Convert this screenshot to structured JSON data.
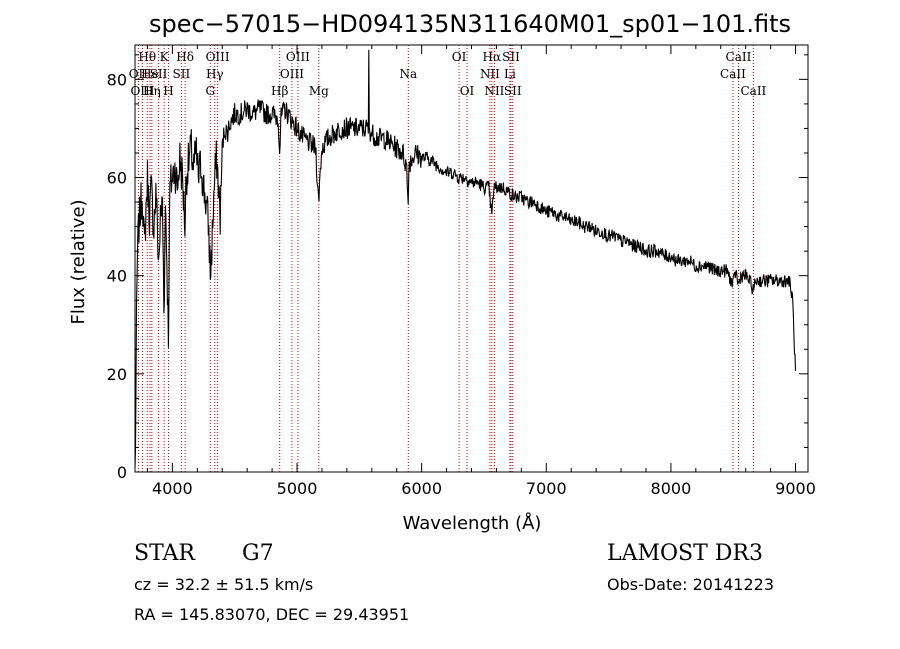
{
  "chart_data": {
    "type": "line",
    "title": "spec−57015−HD094135N311640M01_sp01−101.fits",
    "xlabel": "Wavelength (Å)",
    "ylabel": "Flux (relative)",
    "xlim": [
      3700,
      9100
    ],
    "ylim": [
      0,
      87
    ],
    "x_ticks": [
      4000,
      5000,
      6000,
      7000,
      8000,
      9000
    ],
    "y_ticks": [
      0,
      20,
      40,
      60,
      80
    ],
    "grid": false,
    "series_color": "#000000",
    "line_marker_color": "#cc0000",
    "continuum": [
      [
        3700,
        0
      ],
      [
        3705,
        8
      ],
      [
        3712,
        30
      ],
      [
        3720,
        45
      ],
      [
        3730,
        50
      ],
      [
        3745,
        54
      ],
      [
        3760,
        57
      ],
      [
        3775,
        45
      ],
      [
        3790,
        55
      ],
      [
        3800,
        60
      ],
      [
        3815,
        52
      ],
      [
        3830,
        58
      ],
      [
        3850,
        50
      ],
      [
        3870,
        57
      ],
      [
        3890,
        42
      ],
      [
        3905,
        52
      ],
      [
        3920,
        55
      ],
      [
        3933,
        33
      ],
      [
        3945,
        56
      ],
      [
        3968,
        28
      ],
      [
        3980,
        58
      ],
      [
        4000,
        60
      ],
      [
        4020,
        62
      ],
      [
        4040,
        58
      ],
      [
        4060,
        64
      ],
      [
        4080,
        60
      ],
      [
        4101,
        50
      ],
      [
        4110,
        60
      ],
      [
        4130,
        63
      ],
      [
        4150,
        66
      ],
      [
        4170,
        62
      ],
      [
        4190,
        65
      ],
      [
        4210,
        60
      ],
      [
        4230,
        63
      ],
      [
        4250,
        58
      ],
      [
        4270,
        55
      ],
      [
        4290,
        50
      ],
      [
        4305,
        40
      ],
      [
        4315,
        45
      ],
      [
        4330,
        55
      ],
      [
        4340,
        60
      ],
      [
        4355,
        64
      ],
      [
        4370,
        58
      ],
      [
        4385,
        52
      ],
      [
        4400,
        66
      ],
      [
        4420,
        70
      ],
      [
        4440,
        69
      ],
      [
        4460,
        71
      ],
      [
        4500,
        73
      ],
      [
        4550,
        73
      ],
      [
        4600,
        74
      ],
      [
        4650,
        73
      ],
      [
        4700,
        74
      ],
      [
        4750,
        73
      ],
      [
        4800,
        73
      ],
      [
        4850,
        72
      ],
      [
        4861,
        65
      ],
      [
        4870,
        72
      ],
      [
        4900,
        74
      ],
      [
        4950,
        72
      ],
      [
        5000,
        70
      ],
      [
        5050,
        68
      ],
      [
        5100,
        67
      ],
      [
        5150,
        66
      ],
      [
        5172,
        55
      ],
      [
        5183,
        60
      ],
      [
        5200,
        66
      ],
      [
        5250,
        68
      ],
      [
        5300,
        69
      ],
      [
        5350,
        70
      ],
      [
        5400,
        70
      ],
      [
        5450,
        70
      ],
      [
        5500,
        70
      ],
      [
        5550,
        70
      ],
      [
        5577,
        70
      ],
      [
        5600,
        69
      ],
      [
        5650,
        68
      ],
      [
        5700,
        68
      ],
      [
        5750,
        67
      ],
      [
        5800,
        66
      ],
      [
        5850,
        65
      ],
      [
        5880,
        62
      ],
      [
        5890,
        55
      ],
      [
        5900,
        63
      ],
      [
        5950,
        65
      ],
      [
        6000,
        64
      ],
      [
        6050,
        64
      ],
      [
        6100,
        63
      ],
      [
        6150,
        62
      ],
      [
        6200,
        61
      ],
      [
        6250,
        61
      ],
      [
        6300,
        60
      ],
      [
        6350,
        60
      ],
      [
        6400,
        59
      ],
      [
        6450,
        59
      ],
      [
        6500,
        58
      ],
      [
        6540,
        58
      ],
      [
        6563,
        52
      ],
      [
        6580,
        58
      ],
      [
        6600,
        58
      ],
      [
        6650,
        58
      ],
      [
        6700,
        57
      ],
      [
        6750,
        56
      ],
      [
        6800,
        56
      ],
      [
        6850,
        55
      ],
      [
        6900,
        55
      ],
      [
        6950,
        54
      ],
      [
        7000,
        53
      ],
      [
        7050,
        53
      ],
      [
        7100,
        52
      ],
      [
        7150,
        52
      ],
      [
        7200,
        51
      ],
      [
        7250,
        51
      ],
      [
        7300,
        50
      ],
      [
        7350,
        50
      ],
      [
        7400,
        49
      ],
      [
        7450,
        49
      ],
      [
        7500,
        48
      ],
      [
        7550,
        48
      ],
      [
        7600,
        47
      ],
      [
        7650,
        47
      ],
      [
        7700,
        46
      ],
      [
        7750,
        46
      ],
      [
        7800,
        45
      ],
      [
        7850,
        45
      ],
      [
        7900,
        45
      ],
      [
        7950,
        44
      ],
      [
        8000,
        44
      ],
      [
        8050,
        43
      ],
      [
        8100,
        43
      ],
      [
        8150,
        43
      ],
      [
        8200,
        42
      ],
      [
        8250,
        42
      ],
      [
        8300,
        42
      ],
      [
        8350,
        41
      ],
      [
        8400,
        41
      ],
      [
        8450,
        41
      ],
      [
        8498,
        38
      ],
      [
        8520,
        41
      ],
      [
        8542,
        38
      ],
      [
        8560,
        40
      ],
      [
        8600,
        40
      ],
      [
        8630,
        39
      ],
      [
        8662,
        37
      ],
      [
        8680,
        39
      ],
      [
        8700,
        39
      ],
      [
        8750,
        39
      ],
      [
        8800,
        39
      ],
      [
        8850,
        39
      ],
      [
        8900,
        39
      ],
      [
        8950,
        39
      ],
      [
        8960,
        37
      ],
      [
        8975,
        36
      ],
      [
        8985,
        30
      ],
      [
        9000,
        20
      ]
    ],
    "spectral_lines": [
      {
        "label": "Hθ",
        "wavelength": 3798,
        "row": 0
      },
      {
        "label": "OII",
        "wavelength": 3727,
        "row": 1
      },
      {
        "label": "He",
        "wavelength": 3820,
        "row": 1
      },
      {
        "label": "OIII",
        "wavelength": 3760,
        "row": 2
      },
      {
        "label": "Hη",
        "wavelength": 3835,
        "row": 2
      },
      {
        "label": "K",
        "wavelength": 3934,
        "row": 0
      },
      {
        "label": "SII",
        "wavelength": 3889,
        "row": 1
      },
      {
        "label": "H",
        "wavelength": 3969,
        "row": 2
      },
      {
        "label": "Hδ",
        "wavelength": 4102,
        "row": 0
      },
      {
        "label": "SII",
        "wavelength": 4072,
        "row": 1
      },
      {
        "label": "OIII",
        "wavelength": 4363,
        "row": 0
      },
      {
        "label": "Hγ",
        "wavelength": 4340,
        "row": 1
      },
      {
        "label": "G",
        "wavelength": 4304,
        "row": 2
      },
      {
        "label": "Hβ",
        "wavelength": 4861,
        "row": 2
      },
      {
        "label": "OIII",
        "wavelength": 5007,
        "row": 0
      },
      {
        "label": "OIII",
        "wavelength": 4959,
        "row": 1
      },
      {
        "label": "Mg",
        "wavelength": 5175,
        "row": 2
      },
      {
        "label": "Na",
        "wavelength": 5893,
        "row": 1
      },
      {
        "label": "OI",
        "wavelength": 6300,
        "row": 0
      },
      {
        "label": "OI",
        "wavelength": 6364,
        "row": 2
      },
      {
        "label": "Hα",
        "wavelength": 6563,
        "row": 0
      },
      {
        "label": "SII",
        "wavelength": 6717,
        "row": 0
      },
      {
        "label": "NII",
        "wavelength": 6548,
        "row": 1
      },
      {
        "label": "Li",
        "wavelength": 6708,
        "row": 1
      },
      {
        "label": "NII",
        "wavelength": 6584,
        "row": 2
      },
      {
        "label": "SII",
        "wavelength": 6731,
        "row": 2
      },
      {
        "label": "CaII",
        "wavelength": 8542,
        "row": 0
      },
      {
        "label": "CaII",
        "wavelength": 8498,
        "row": 1
      },
      {
        "label": "CaII",
        "wavelength": 8662,
        "row": 2
      }
    ]
  },
  "info": {
    "object_type": "STAR",
    "subclass": "G7",
    "cz": "cz = 32.2 ± 51.5 km/s",
    "coords": "RA = 145.83070, DEC =  29.43951",
    "survey": "LAMOST DR3",
    "obs_date": "Obs-Date: 20141223"
  }
}
